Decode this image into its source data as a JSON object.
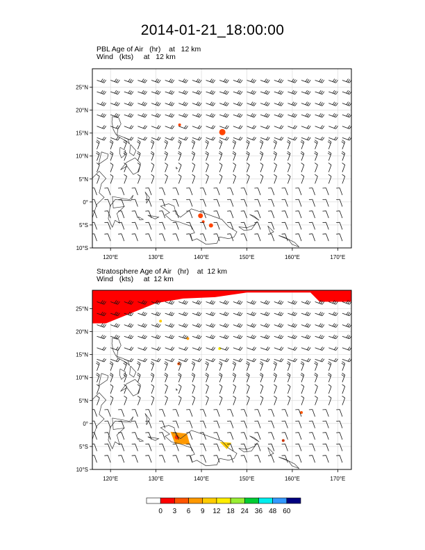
{
  "title": "2014-01-21_18:00:00",
  "panels": [
    {
      "line1": {
        "field": "PBL Age of Air",
        "unit": "(hr)",
        "level": "at   12 km"
      },
      "line2": {
        "field": "Wind",
        "unit": "(kts)",
        "level": "at   12 km"
      }
    },
    {
      "line1": {
        "field": "Stratosphere Age of Air",
        "unit": "(hr)",
        "level": "at  12 km"
      },
      "line2": {
        "field": "Wind",
        "unit": "(kts)",
        "level": "at  12 km"
      }
    }
  ],
  "map": {
    "lon_range": [
      116,
      173
    ],
    "lat_range": [
      -10,
      29
    ],
    "lon_ticks": [
      "120°E",
      "130°E",
      "140°E",
      "150°E",
      "160°E",
      "170°E"
    ],
    "lat_ticks": [
      "25°N",
      "20°N",
      "15°N",
      "10°N",
      "5°N",
      "0°",
      "5°S",
      "10°S"
    ],
    "grid": true,
    "coastlines": true,
    "wind_barbs": true
  },
  "colorbar": {
    "labels": [
      "0",
      "3",
      "6",
      "9",
      "12",
      "18",
      "24",
      "36",
      "48",
      "60"
    ],
    "colors": [
      "#ffffff",
      "#ff0000",
      "#ff5500",
      "#ff9900",
      "#ffcc00",
      "#ffee00",
      "#99ee33",
      "#00cc33",
      "#00eeee",
      "#3399ff",
      "#000080"
    ]
  }
}
